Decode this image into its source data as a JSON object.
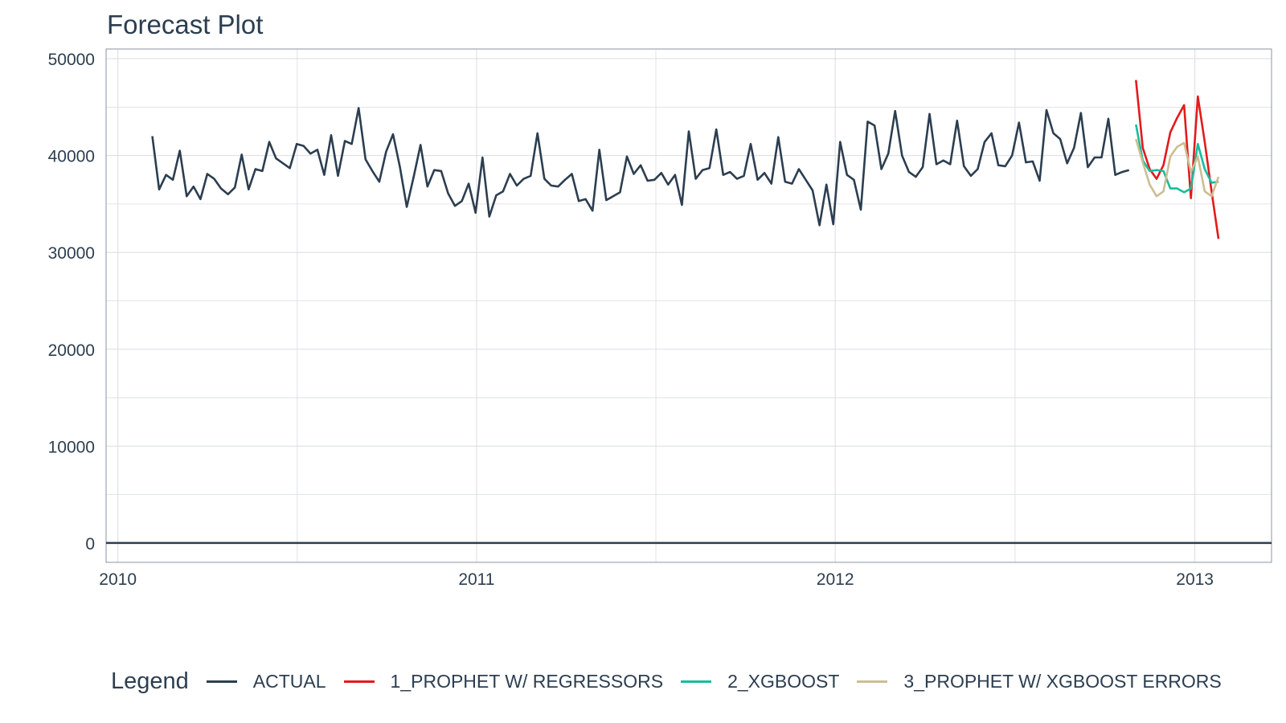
{
  "colors": {
    "actual": "#2c3e50",
    "prophet_reg": "#e31a1c",
    "xgboost": "#18bc9c",
    "prophet_xgb": "#ccbe93",
    "grid": "#d9dde2",
    "axis_text": "#2c3e50"
  },
  "chart_data": {
    "type": "line",
    "title": "Forecast Plot",
    "xlabel": "",
    "ylabel": "",
    "xlim": [
      "2009-12-20",
      "2013-03-20"
    ],
    "ylim": [
      -2000,
      51000
    ],
    "x_ticks": [
      "2010-01-01",
      "2011-01-01",
      "2012-01-01",
      "2013-01-01"
    ],
    "x_tick_labels": [
      "2010",
      "2011",
      "2012",
      "2013"
    ],
    "y_ticks": [
      0,
      10000,
      20000,
      30000,
      40000,
      50000
    ],
    "y_tick_labels": [
      "0",
      "10000",
      "20000",
      "30000",
      "40000",
      "50000"
    ],
    "hline": 0,
    "grid": true,
    "legend_title": "Legend",
    "legend_position": "bottom",
    "series": [
      {
        "name": "ACTUAL",
        "color_key": "actual",
        "start": "2010-02-05",
        "step_days": 7,
        "values": [
          42000,
          36500,
          38000,
          37500,
          40500,
          35800,
          36800,
          35500,
          38100,
          37600,
          36600,
          36000,
          36700,
          40100,
          36500,
          38600,
          38400,
          41400,
          39700,
          39200,
          38700,
          41200,
          41000,
          40200,
          40600,
          38000,
          42100,
          37900,
          41500,
          41200,
          44900,
          39600,
          38400,
          37300,
          40400,
          42200,
          38800,
          34700,
          37800,
          41100,
          36800,
          38500,
          38400,
          36100,
          34800,
          35300,
          37100,
          34100,
          39800,
          33700,
          35900,
          36300,
          38100,
          36900,
          37600,
          37900,
          42300,
          37600,
          36900,
          36800,
          37500,
          38100,
          35300,
          35500,
          34300,
          40600,
          35400,
          35800,
          36200,
          39900,
          38100,
          39000,
          37400,
          37500,
          38200,
          37000,
          38000,
          34900,
          42500,
          37600,
          38500,
          38700,
          42700,
          38000,
          38300,
          37600,
          37900,
          41200,
          37500,
          38200,
          37100,
          41900,
          37300,
          37100,
          38600,
          37500,
          36400,
          32800,
          37000,
          32900,
          41400,
          38000,
          37500,
          34400,
          43500,
          43100,
          38600,
          40200,
          44600,
          40000,
          38300,
          37800,
          38800,
          44300,
          39100,
          39500,
          39100,
          43600,
          38900,
          37900,
          38600,
          41400,
          42300,
          39000,
          38900,
          40000,
          43400,
          39300,
          39400,
          37400,
          44700,
          42300,
          41700,
          39200,
          40800,
          44400,
          38800,
          39800,
          39800,
          43800,
          38000,
          38300,
          38500
        ]
      },
      {
        "name": "1_PROPHET W/ REGRESSORS",
        "color_key": "prophet_reg",
        "start": "2012-11-02",
        "step_days": 7,
        "values": [
          47800,
          40800,
          38600,
          37600,
          39000,
          42400,
          43900,
          45200,
          35600,
          46100,
          41400,
          36300,
          31400
        ]
      },
      {
        "name": "2_XGBOOST",
        "color_key": "xgboost",
        "start": "2012-11-02",
        "step_days": 7,
        "values": [
          43200,
          39500,
          38400,
          38500,
          38400,
          36600,
          36600,
          36200,
          36600,
          41200,
          38600,
          37200,
          37300
        ]
      },
      {
        "name": "3_PROPHET W/ XGBOOST ERRORS",
        "color_key": "prophet_xgb",
        "start": "2012-11-02",
        "step_days": 7,
        "values": [
          41700,
          39300,
          37000,
          35800,
          36300,
          39900,
          40900,
          41300,
          38300,
          39900,
          36300,
          35800,
          37800
        ]
      }
    ]
  }
}
